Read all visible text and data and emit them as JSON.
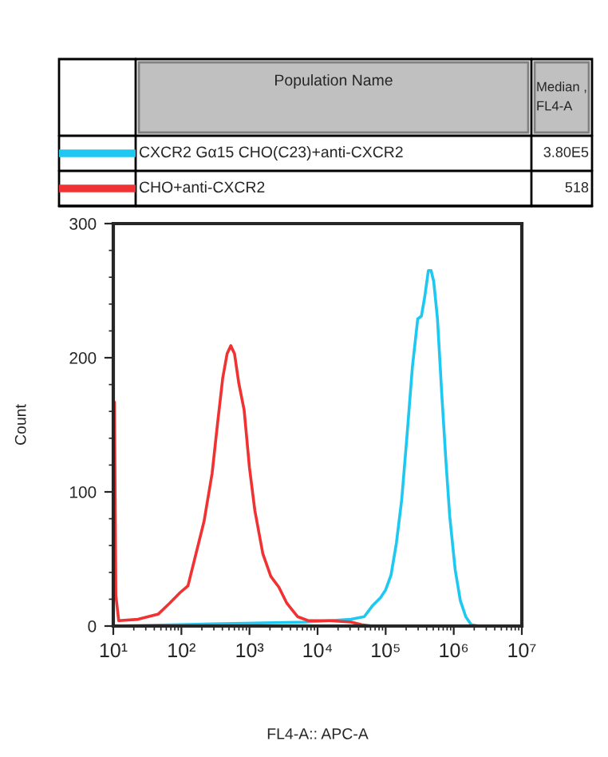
{
  "chart_data": {
    "type": "line",
    "xlabel": "FL4-A:: APC-A",
    "ylabel": "Count",
    "log": "x",
    "xlim": [
      10,
      10000000
    ],
    "xticks": [
      {
        "value": 10,
        "label": "10¹"
      },
      {
        "value": 100,
        "label": "10²"
      },
      {
        "value": 1000,
        "label": "10³"
      },
      {
        "value": 10000,
        "label": "10⁴"
      },
      {
        "value": 100000,
        "label": "10⁵"
      },
      {
        "value": 1000000,
        "label": "10⁶"
      },
      {
        "value": 10000000,
        "label": "10⁷"
      }
    ],
    "ylim": [
      0,
      300
    ],
    "yticks": [
      0,
      100,
      200,
      300
    ],
    "legend": "top",
    "grid": false,
    "annotations": [
      "Population Name",
      "Median ,\nFL4-A",
      "3.80E5",
      "518"
    ],
    "series": [
      {
        "name": "CXCR2 Gα15 CHO(C23)+anti-CXCR2",
        "color": "#1ec8f0",
        "x": [
          10,
          6670,
          15000,
          31000,
          48500,
          63700,
          83600,
          100000,
          120000,
          144000,
          172000,
          206000,
          247000,
          296000,
          335000,
          374000,
          424000,
          464000,
          508000,
          577000,
          667000,
          770000,
          873000,
          1050000,
          1250000,
          1500000,
          1800000,
          2360000,
          10000000
        ],
        "values": [
          0,
          3,
          4,
          5,
          7,
          15,
          21,
          27,
          38,
          62,
          94,
          142,
          193,
          229,
          231,
          245,
          265,
          265,
          257,
          229,
          173,
          122,
          82,
          42,
          19,
          7,
          1,
          0,
          0
        ]
      },
      {
        "name": "CHO+anti-CXCR2",
        "color": "#f03232",
        "x": [
          10,
          10.4,
          10.9,
          12,
          23,
          46,
          67,
          96,
          125,
          164,
          215,
          283,
          338,
          405,
          469,
          531,
          603,
          697,
          835,
          1000,
          1200,
          1570,
          2060,
          2700,
          3540,
          5080,
          7300,
          15000,
          31000,
          44400,
          63700,
          10000000
        ],
        "values": [
          0,
          167,
          23,
          4,
          5,
          9,
          17,
          25,
          30,
          54,
          78,
          114,
          150,
          185,
          203,
          209,
          203,
          181,
          161,
          118,
          86,
          54,
          37,
          29,
          17,
          7,
          4,
          4,
          3,
          1,
          0,
          0
        ]
      }
    ]
  }
}
